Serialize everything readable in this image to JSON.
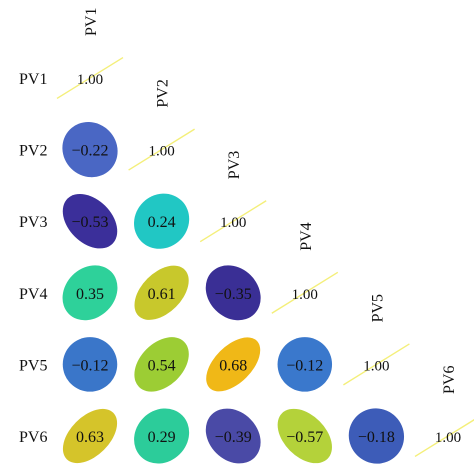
{
  "chart_data": {
    "type": "heatmap",
    "style": "correlation ellipse matrix (lower triangle)",
    "title": "",
    "variables": [
      "PV1",
      "PV2",
      "PV3",
      "PV4",
      "PV5",
      "PV6"
    ],
    "cells": [
      {
        "row": "PV1",
        "col": "PV1",
        "value": 1.0,
        "label": "1.00"
      },
      {
        "row": "PV2",
        "col": "PV1",
        "value": -0.22,
        "label": "−0.22"
      },
      {
        "row": "PV2",
        "col": "PV2",
        "value": 1.0,
        "label": "1.00"
      },
      {
        "row": "PV3",
        "col": "PV1",
        "value": -0.53,
        "label": "−0.53"
      },
      {
        "row": "PV3",
        "col": "PV2",
        "value": 0.24,
        "label": "0.24"
      },
      {
        "row": "PV3",
        "col": "PV3",
        "value": 1.0,
        "label": "1.00"
      },
      {
        "row": "PV4",
        "col": "PV1",
        "value": 0.35,
        "label": "0.35"
      },
      {
        "row": "PV4",
        "col": "PV2",
        "value": 0.61,
        "label": "0.61"
      },
      {
        "row": "PV4",
        "col": "PV3",
        "value": -0.35,
        "label": "−0.35"
      },
      {
        "row": "PV4",
        "col": "PV4",
        "value": 1.0,
        "label": "1.00"
      },
      {
        "row": "PV5",
        "col": "PV1",
        "value": -0.12,
        "label": "−0.12"
      },
      {
        "row": "PV5",
        "col": "PV2",
        "value": 0.54,
        "label": "0.54"
      },
      {
        "row": "PV5",
        "col": "PV3",
        "value": 0.68,
        "label": "0.68"
      },
      {
        "row": "PV5",
        "col": "PV4",
        "value": -0.12,
        "label": "−0.12"
      },
      {
        "row": "PV5",
        "col": "PV5",
        "value": 1.0,
        "label": "1.00"
      },
      {
        "row": "PV6",
        "col": "PV1",
        "value": 0.63,
        "label": "0.63"
      },
      {
        "row": "PV6",
        "col": "PV2",
        "value": 0.29,
        "label": "0.29"
      },
      {
        "row": "PV6",
        "col": "PV3",
        "value": -0.39,
        "label": "−0.39"
      },
      {
        "row": "PV6",
        "col": "PV4",
        "value": -0.57,
        "label": "−0.57"
      },
      {
        "row": "PV6",
        "col": "PV5",
        "value": -0.18,
        "label": "−0.18"
      },
      {
        "row": "PV6",
        "col": "PV6",
        "value": 1.0,
        "label": "1.00"
      }
    ],
    "fill_colors": {
      "PV2|PV1": "#4a67c4",
      "PV3|PV1": "#3b2f9a",
      "PV3|PV2": "#21c7c4",
      "PV4|PV1": "#2ed19a",
      "PV4|PV2": "#c8c82c",
      "PV4|PV3": "#3a2f95",
      "PV5|PV1": "#3a76c9",
      "PV5|PV2": "#9ccd34",
      "PV5|PV3": "#f0b817",
      "PV5|PV4": "#3a78cc",
      "PV6|PV1": "#d5c42a",
      "PV6|PV2": "#2ccc9a",
      "PV6|PV3": "#4a4aa6",
      "PV6|PV4": "#b4d23a",
      "PV6|PV5": "#3d5cb8"
    },
    "diagonal_line_color": "#f4ef7a",
    "grid": false,
    "legend": "none"
  }
}
